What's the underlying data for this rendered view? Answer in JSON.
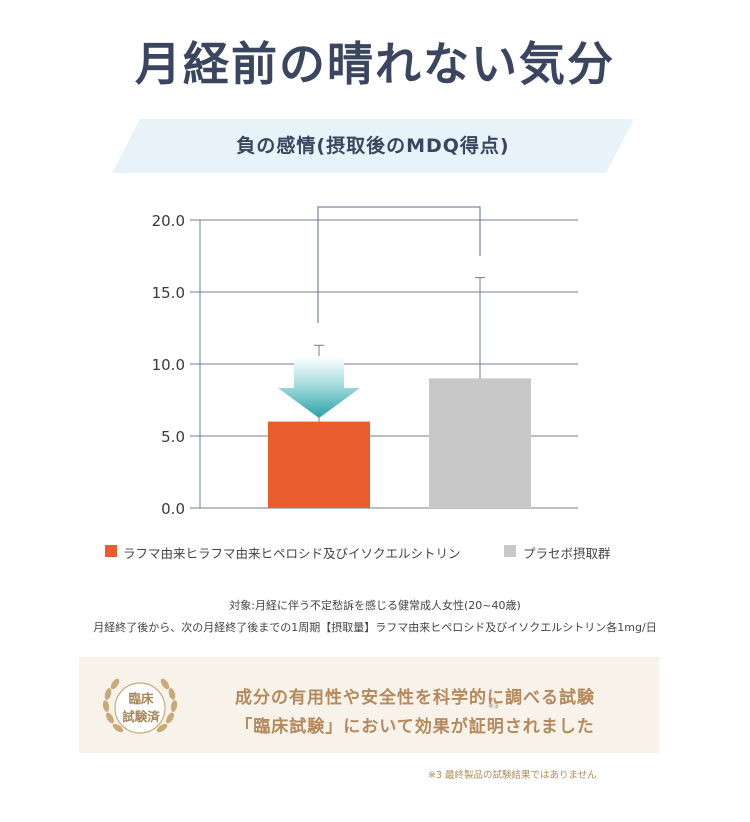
{
  "header": {
    "title": "月経前の晴れない気分"
  },
  "chart_data": {
    "type": "bar",
    "title": "負の感情(摂取後のMDQ得点)",
    "categories": [
      "ラフマ由来ヒラフマ由来ヒペロシド及びイソクエルシトリン",
      "プラセボ摂取群"
    ],
    "values": [
      6.0,
      9.0
    ],
    "error_upper": [
      11.3,
      16.0
    ],
    "colors": [
      "#e95d2d",
      "#c8c8c8"
    ],
    "yticks": [
      "0.0",
      "5.0",
      "10.0",
      "15.0",
      "20.0"
    ],
    "ylim": [
      0,
      20
    ],
    "grid": true,
    "legend": "bottom",
    "significance_bracket": true
  },
  "notes": [
    "対象:月経に伴う不定愁訴を感じる健常成人女性(20~40歳)",
    "月経終了後から、次の月経終了後までの1周期【摂取量】ラフマ由来ヒペロシド及びイソクエルシトリン各1mg/日"
  ],
  "callout": {
    "badge_line1": "臨床",
    "badge_line2": "試験済",
    "line1": "成分の有用性や安全性を科学的に調べる試験",
    "line2": "「臨床試験」において効果が証明されました",
    "ref": "※3"
  },
  "footnote": "※3 最終製品の試験結果ではありません"
}
